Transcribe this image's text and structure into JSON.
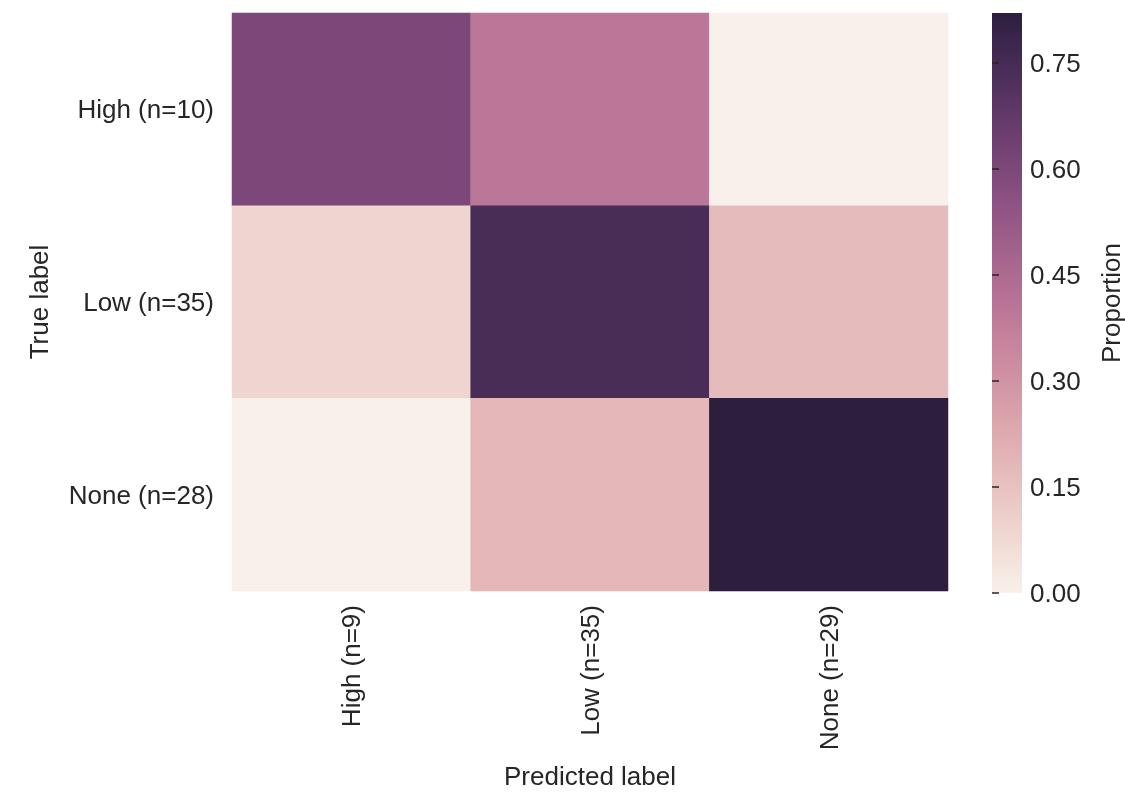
{
  "chart_data": {
    "type": "heatmap",
    "xlabel": "Predicted label",
    "ylabel": "True label",
    "clabel": "Proportion",
    "categories": [
      "High (n=9)",
      "Low (n=35)",
      "None (n=29)"
    ],
    "y_categories": [
      "High (n=10)",
      "Low (n=35)",
      "None (n=28)"
    ],
    "cells": [
      [
        0.6,
        0.4,
        0
      ],
      [
        0.09,
        0.74,
        0.17
      ],
      [
        0,
        0.18,
        0.82
      ]
    ],
    "clim": [
      0,
      0.82
    ],
    "cticks": [
      {
        "value": 0,
        "label": "0.00"
      },
      0.15,
      {
        "value": 0.3,
        "label": "0.30"
      },
      0.45,
      {
        "value": 0.6,
        "label": "0.60"
      },
      0.75
    ]
  }
}
